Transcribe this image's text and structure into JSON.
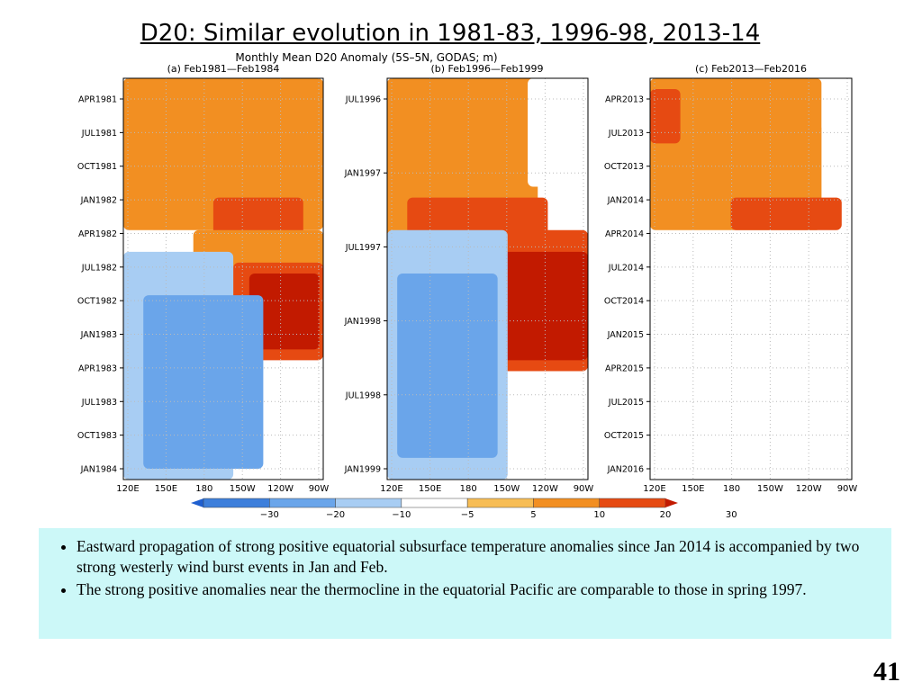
{
  "slide": {
    "title": "D20: Similar evolution in 1981-83, 1996-98, 2013-14",
    "page_number": "41",
    "bullets": [
      "Eastward propagation of strong positive equatorial subsurface temperature anomalies since Jan 2014 is accompanied by two strong westerly wind burst events in Jan and Feb.",
      "The strong positive anomalies near the thermocline in the equatorial Pacific are comparable to those in spring 1997."
    ]
  },
  "chart_data": {
    "type": "heatmap",
    "title": "Monthly Mean D20 Anomaly (5S–5N, GODAS; m)",
    "colorbar": {
      "tick_labels": [
        "−30",
        "−20",
        "−10",
        "−5",
        "5",
        "10",
        "20",
        "30"
      ],
      "levels": [
        -30,
        -20,
        -10,
        -5,
        5,
        10,
        20,
        30
      ],
      "colors": [
        "#1f5fcf",
        "#3d7fdb",
        "#6aa5ea",
        "#a8cdf3",
        "#ffffff",
        "#f7bd55",
        "#f28f22",
        "#e64a12",
        "#c21a00"
      ]
    },
    "x_ticks": [
      "120E",
      "150E",
      "180",
      "150W",
      "120W",
      "90W"
    ],
    "panels": [
      {
        "subtitle": "(a) Feb1981—Feb1984",
        "y_ticks": [
          "APR1981",
          "JUL1981",
          "OCT1981",
          "JAN1982",
          "APR1982",
          "JUL1982",
          "OCT1982",
          "JAN1983",
          "APR1983",
          "JUL1983",
          "OCT1983",
          "JAN1984"
        ],
        "n_months": 37,
        "filled_months": 37,
        "features": [
          {
            "t0": 0,
            "t1": 14,
            "lon0": 0.0,
            "lon1": 1.0,
            "value": 10
          },
          {
            "t0": 11,
            "t1": 15,
            "lon0": 0.45,
            "lon1": 0.9,
            "value": 20
          },
          {
            "t0": 14,
            "t1": 25,
            "lon0": 0.35,
            "lon1": 1.0,
            "value": 10
          },
          {
            "t0": 17,
            "t1": 26,
            "lon0": 0.55,
            "lon1": 1.0,
            "value": 20
          },
          {
            "t0": 18,
            "t1": 25,
            "lon0": 0.63,
            "lon1": 0.98,
            "value": 30
          },
          {
            "t0": 16,
            "t1": 37,
            "lon0": 0.0,
            "lon1": 0.55,
            "value": -10
          },
          {
            "t0": 20,
            "t1": 36,
            "lon0": 0.1,
            "lon1": 0.7,
            "value": -20
          }
        ]
      },
      {
        "subtitle": "(b) Feb1996—Feb1999",
        "y_ticks": [
          "JUL1996",
          "JAN1997",
          "JUL1997",
          "JAN1998",
          "JUL1998",
          "JAN1999"
        ],
        "n_months": 37,
        "filled_months": 37,
        "features": [
          {
            "t0": 0,
            "t1": 15,
            "lon0": 0.0,
            "lon1": 0.75,
            "value": 10
          },
          {
            "t0": 0,
            "t1": 10,
            "lon0": 0.7,
            "lon1": 1.0,
            "value": -5
          },
          {
            "t0": 11,
            "t1": 16,
            "lon0": 0.1,
            "lon1": 0.8,
            "value": 20
          },
          {
            "t0": 14,
            "t1": 27,
            "lon0": 0.4,
            "lon1": 1.0,
            "value": 20
          },
          {
            "t0": 16,
            "t1": 26,
            "lon0": 0.55,
            "lon1": 1.0,
            "value": 30
          },
          {
            "t0": 14,
            "t1": 37,
            "lon0": 0.0,
            "lon1": 0.6,
            "value": -10
          },
          {
            "t0": 18,
            "t1": 35,
            "lon0": 0.05,
            "lon1": 0.55,
            "value": -20
          }
        ]
      },
      {
        "subtitle": "(c) Feb2013—Feb2016",
        "y_ticks": [
          "APR2013",
          "JUL2013",
          "OCT2013",
          "JAN2014",
          "APR2014",
          "JUL2014",
          "OCT2014",
          "JAN2015",
          "APR2015",
          "JUL2015",
          "OCT2015",
          "JAN2016"
        ],
        "n_months": 37,
        "filled_months": 14,
        "features": [
          {
            "t0": 0,
            "t1": 14,
            "lon0": 0.0,
            "lon1": 0.85,
            "value": 10
          },
          {
            "t0": 0,
            "t1": 5,
            "lon0": 0.85,
            "lon1": 1.0,
            "value": -5
          },
          {
            "t0": 1,
            "t1": 6,
            "lon0": 0.0,
            "lon1": 0.15,
            "value": 20
          },
          {
            "t0": 11,
            "t1": 14,
            "lon0": 0.4,
            "lon1": 0.95,
            "value": 20
          }
        ]
      }
    ]
  }
}
